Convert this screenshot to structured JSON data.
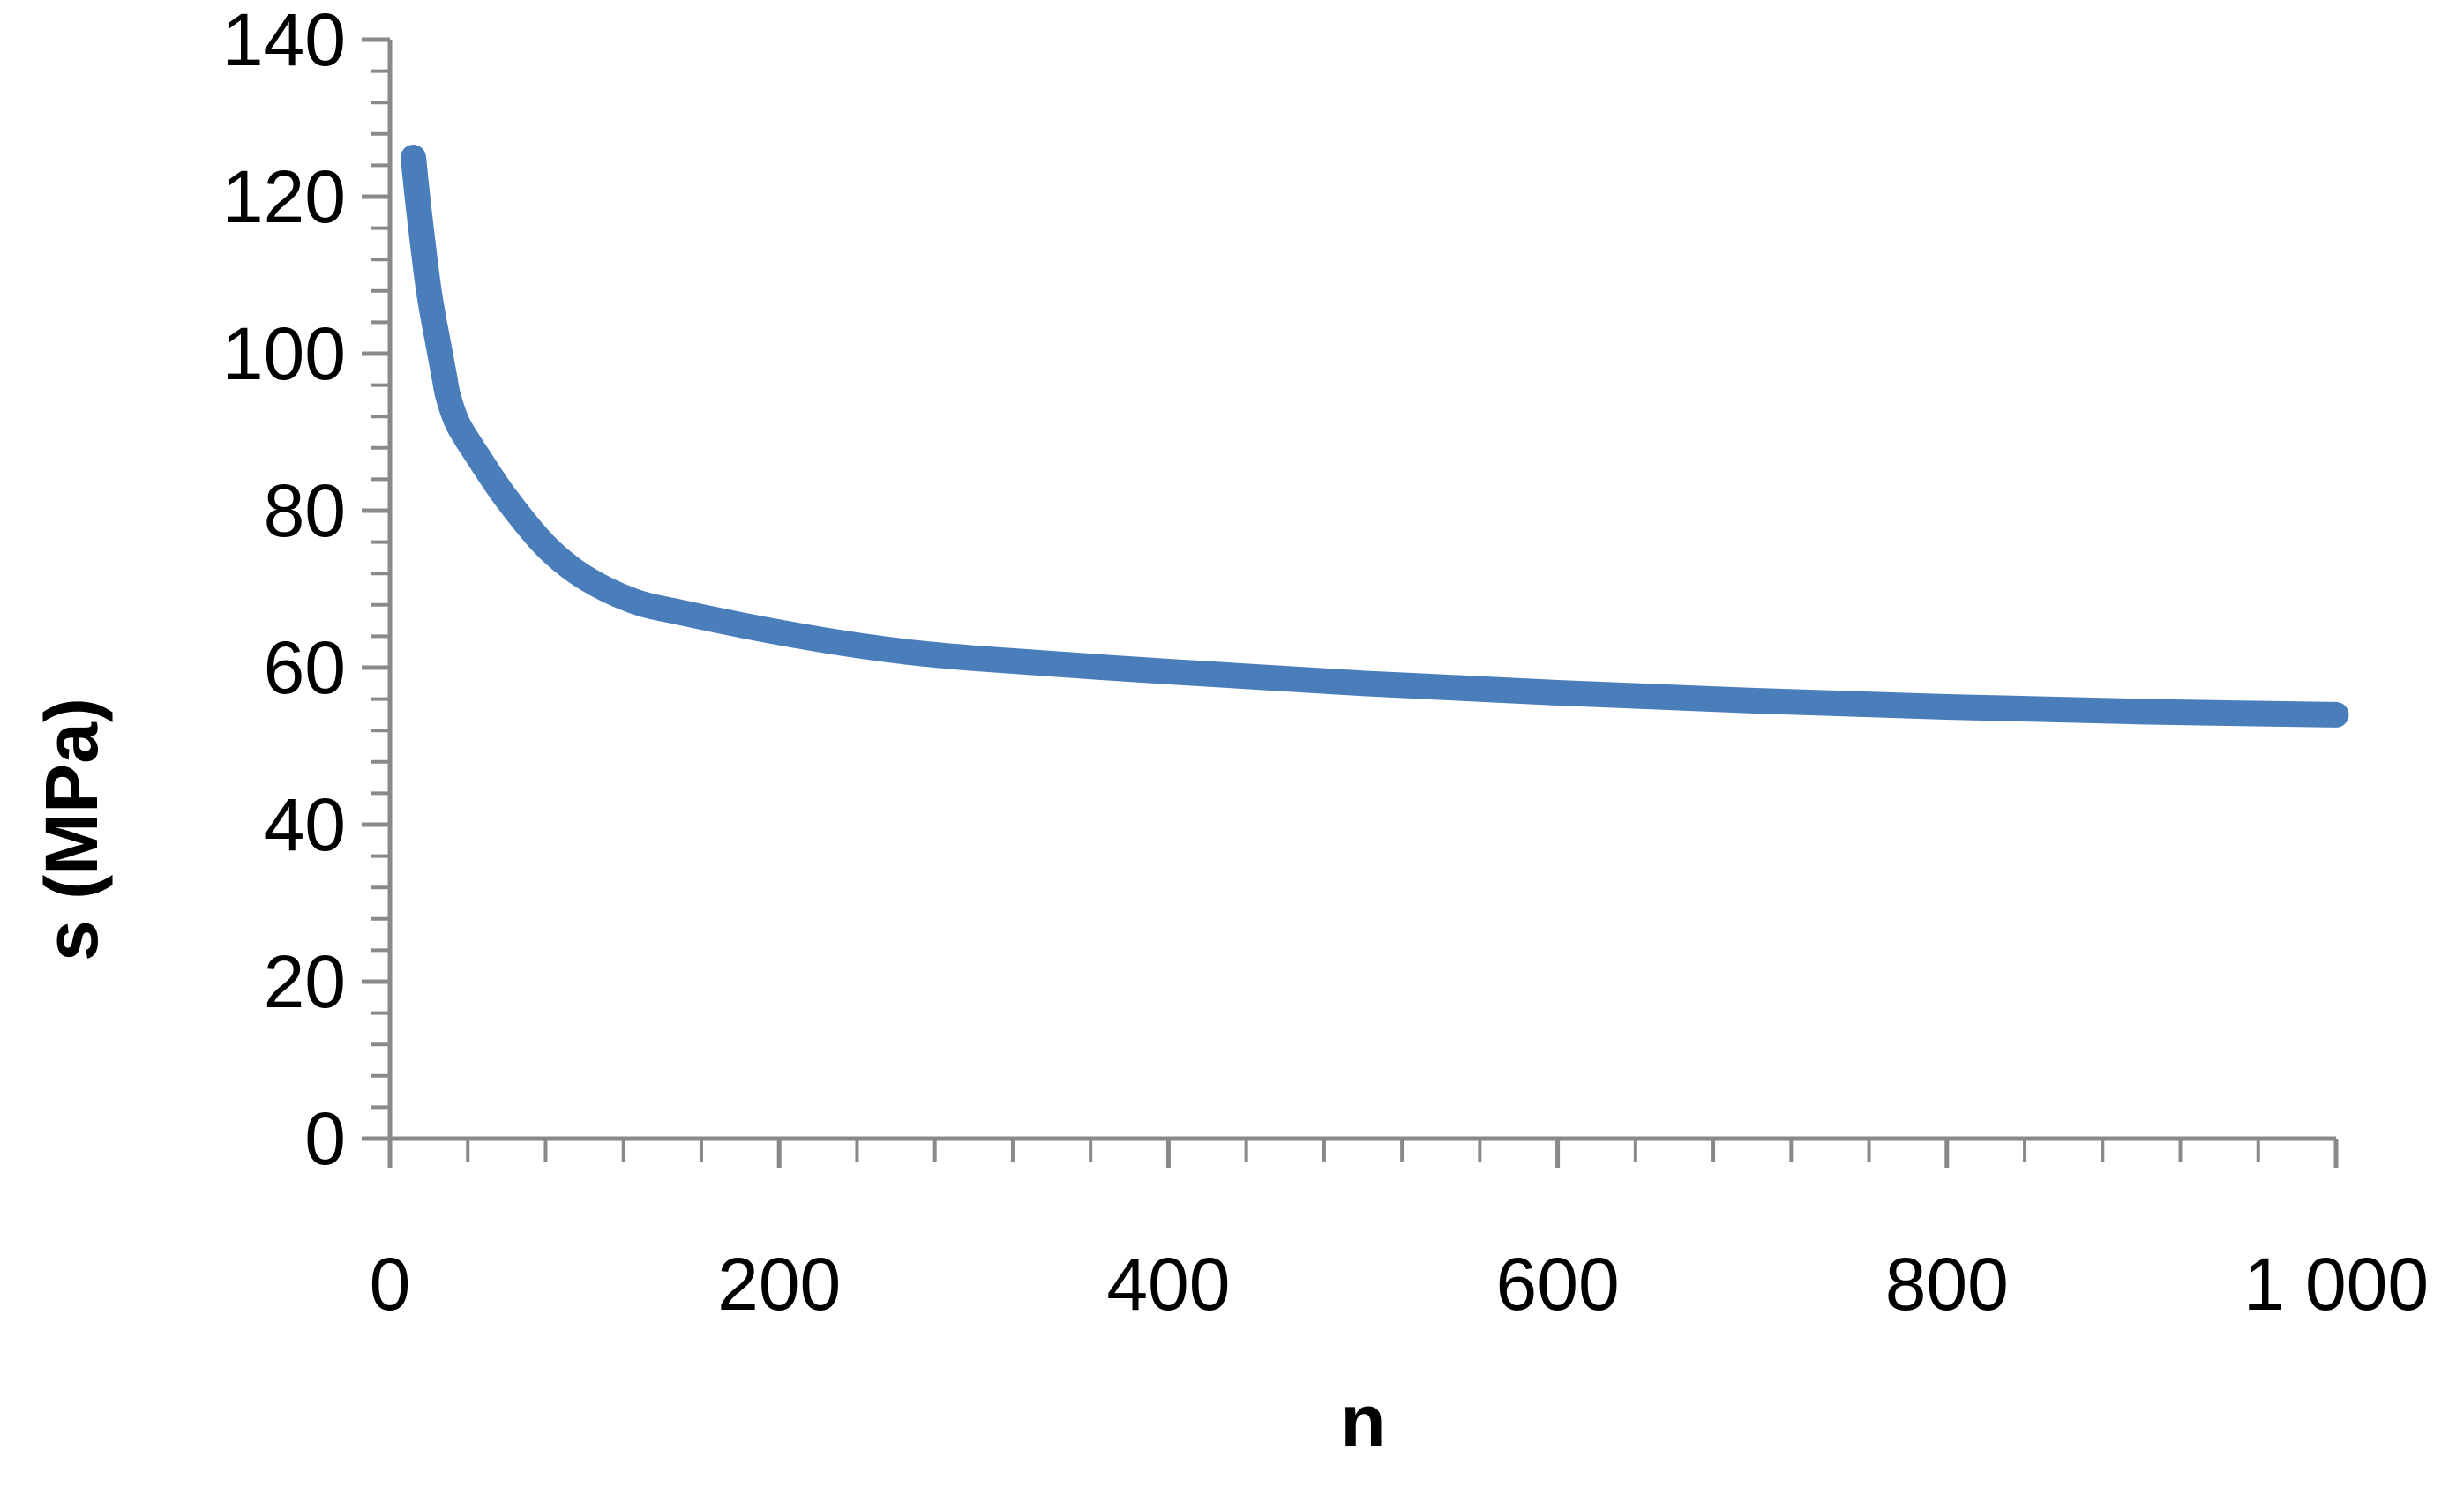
{
  "chart_data": {
    "type": "line",
    "title": "",
    "xlabel": "n",
    "ylabel": "s (MPa)",
    "xlim": [
      0,
      1000
    ],
    "ylim": [
      0,
      140
    ],
    "x_ticks": [
      0,
      200,
      400,
      600,
      800,
      1000
    ],
    "x_tick_labels": [
      "0",
      "200",
      "400",
      "600",
      "800",
      "1 000"
    ],
    "y_ticks": [
      0,
      20,
      40,
      60,
      80,
      100,
      120,
      140
    ],
    "y_tick_labels": [
      "0",
      "20",
      "40",
      "60",
      "80",
      "100",
      "120",
      "140"
    ],
    "grid": false,
    "legend": "none",
    "series": [
      {
        "color": "#4A7EBB",
        "x": [
          12,
          15,
          20,
          25,
          28,
          30,
          35,
          45,
          60,
          80,
          100,
          125,
          150,
          200,
          250,
          300,
          400,
          500,
          600,
          700,
          800,
          900,
          1000
        ],
        "y": [
          125,
          118,
          108,
          101,
          97,
          94.5,
          91,
          87,
          81.5,
          75.5,
          71.5,
          68.5,
          67,
          64.5,
          62.5,
          61.2,
          59.5,
          58,
          56.8,
          55.8,
          55,
          54.4,
          54
        ]
      }
    ]
  }
}
